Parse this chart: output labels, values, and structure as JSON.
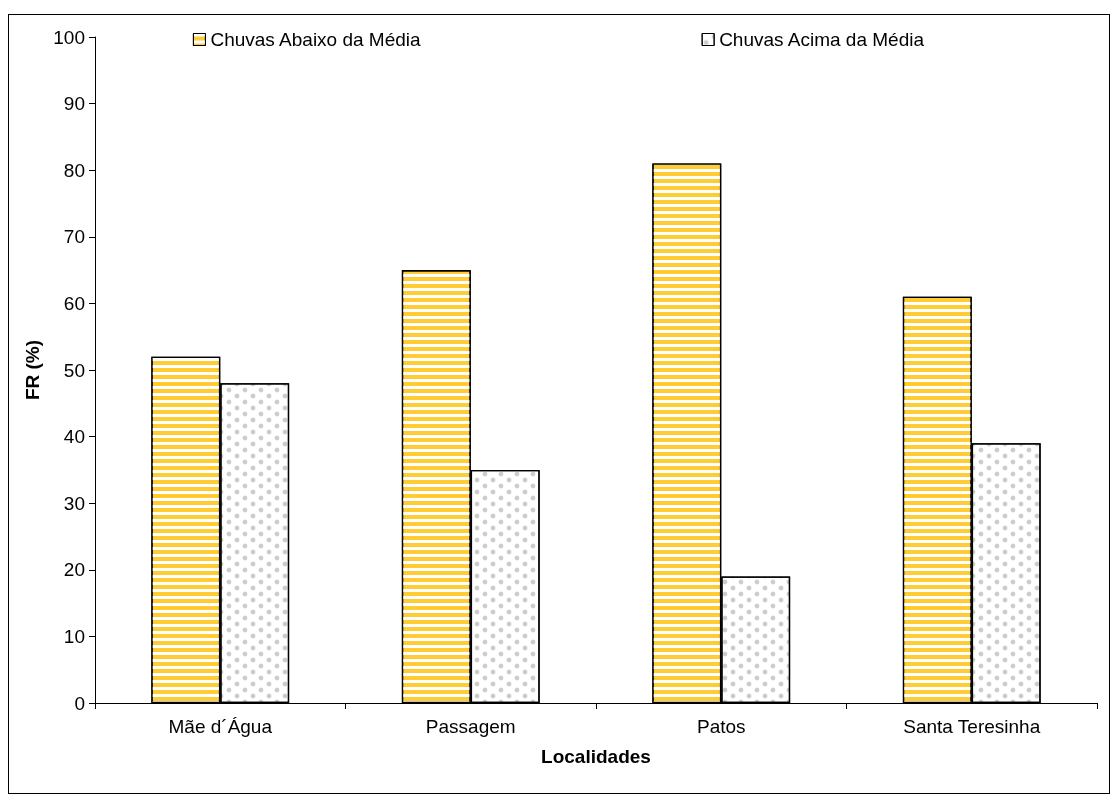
{
  "chart_data": {
    "type": "bar",
    "xlabel": "Localidades",
    "ylabel": "FR (%)",
    "categories": [
      "Mãe d´Água",
      "Passagem",
      "Patos",
      "Santa Teresinha"
    ],
    "series": [
      {
        "name": "Chuvas Abaixo da Média",
        "color": "#ffcc33",
        "values": [
          52,
          65,
          81,
          61
        ]
      },
      {
        "name": "Chuvas Acima da Média",
        "color": "#ffffff",
        "values": [
          48,
          35,
          19,
          39
        ]
      }
    ],
    "ylim": [
      0,
      100
    ],
    "yticks": [
      0,
      10,
      20,
      30,
      40,
      50,
      60,
      70,
      80,
      90,
      100
    ],
    "grid": false,
    "legend": "top"
  }
}
